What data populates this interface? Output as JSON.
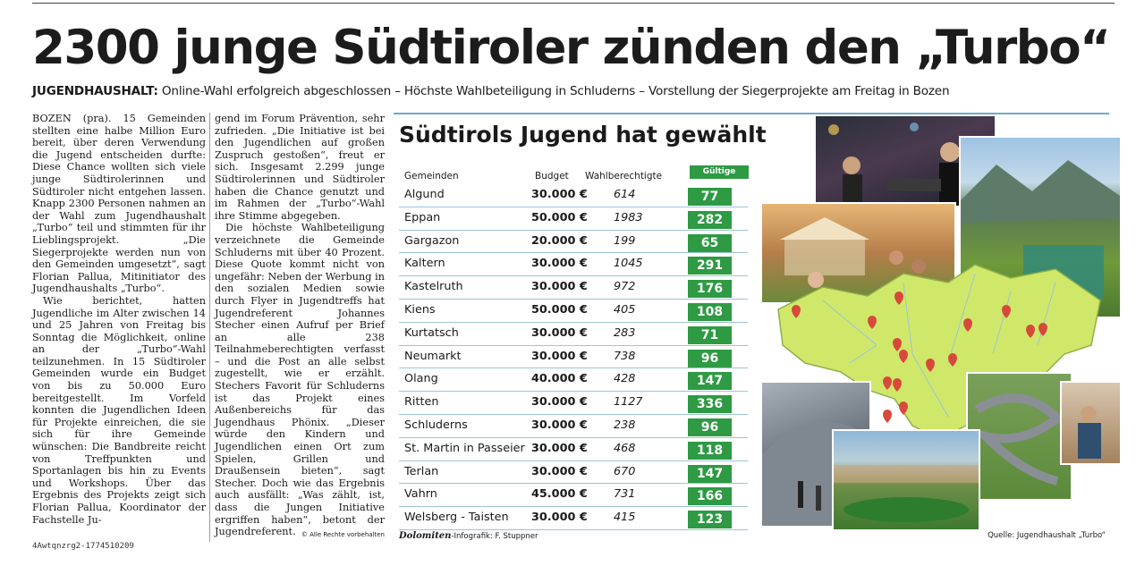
{
  "headline": "2300 junge Südtiroler zünden den „Turbo“",
  "subhead": {
    "kicker": "JUGENDHAUSHALT:",
    "text": " Online-Wahl erfolgreich abgeschlossen – Höchste Wahlbeteiligung in Schluderns – Vorstellung der Siegerprojekte am Freitag in Bozen"
  },
  "article": {
    "col1": [
      "BOZEN (pra). 15 Gemeinden stellten eine halbe Million Euro bereit, über deren Verwendung die Jugend entscheiden durfte: Diese Chance wollten sich viele junge Südtirolerinnen und Südtiroler nicht entgehen lassen. Knapp 2300 Personen nahmen an der Wahl zum Jugendhaushalt „Turbo“ teil und stimmten für ihr Lieblingsprojekt. „Die Siegerprojekte werden nun von den Gemeinden umgesetzt“, sagt Florian Pallua, Mitinitiator des Jugendhaushalts „Turbo“.",
      "Wie berichtet, hatten Jugendliche im Alter zwischen 14 und 25 Jahren von Freitag bis Sonntag die Möglichkeit, online an der „Turbo“-Wahl teilzunehmen. In 15 Südtiroler Gemeinden wurde ein Budget von bis zu 50.000 Euro bereitgestellt. Im Vorfeld konnten die Jugendlichen Ideen für Projekte einreichen, die sie sich für ihre Gemeinde wünschen: Die Bandbreite reicht von Treffpunkten und Sportanlagen bis hin zu Events und Workshops. Über das Ergebnis des Projekts zeigt sich Florian Pallua, Koordinator der Fachstelle Ju-"
    ],
    "col2": [
      "gend im Forum Prävention, sehr zufrieden. „Die Initiative ist bei den Jugendlichen auf großen Zuspruch gestoßen“, freut er sich. Insgesamt 2.299 junge Südtirolerinnen und Südtiroler haben die Chance genutzt und im Rahmen der „Turbo“-Wahl ihre Stimme abgegeben.",
      "Die höchste Wahlbeteiligung verzeichnete die Gemeinde Schluderns mit über 40 Prozent. Diese Quote kommt nicht von ungefähr: Neben der Werbung in den sozialen Medien sowie durch Flyer in Jugendtreffs hat Jugendreferent Johannes Stecher einen Aufruf per Brief an alle 238 Teilnahmeberechtigten verfasst – und die Post an alle selbst zugestellt, wie er erzählt. Stechers Favorit für Schluderns ist das Projekt eines Außenbereichs für das Jugendhaus Phönix. „Dieser würde den Kindern und Jugendlichen einen Ort zum Spielen, Grillen und Draußensein bieten“, sagt Stecher. Doch wie das Ergebnis auch ausfällt: „Was zählt, ist, dass die Jungen Initiative ergriffen haben“, betont der Jugendreferent."
    ],
    "copyright": "© Alle Rechte vorbehalten",
    "code": "4Awtqnzrg2-1774510209"
  },
  "infographic": {
    "title": "Südtirols Jugend hat gewählt",
    "headers": {
      "name": "Gemeinden",
      "budget": "Budget",
      "eligible": "Wahlberechtigte",
      "votes": "Gültige Stimmen"
    },
    "rows": [
      {
        "name": "Algund",
        "budget": "30.000 €",
        "eligible": "614",
        "votes": "77"
      },
      {
        "name": "Eppan",
        "budget": "50.000 €",
        "eligible": "1983",
        "votes": "282"
      },
      {
        "name": "Gargazon",
        "budget": "20.000 €",
        "eligible": "199",
        "votes": "65"
      },
      {
        "name": "Kaltern",
        "budget": "30.000 €",
        "eligible": "1045",
        "votes": "291"
      },
      {
        "name": "Kastelruth",
        "budget": "30.000 €",
        "eligible": "972",
        "votes": "176"
      },
      {
        "name": "Kiens",
        "budget": "50.000 €",
        "eligible": "405",
        "votes": "108"
      },
      {
        "name": "Kurtatsch",
        "budget": "30.000 €",
        "eligible": "283",
        "votes": "71"
      },
      {
        "name": "Neumarkt",
        "budget": "30.000 €",
        "eligible": "738",
        "votes": "96"
      },
      {
        "name": "Olang",
        "budget": "40.000 €",
        "eligible": "428",
        "votes": "147"
      },
      {
        "name": "Ritten",
        "budget": "30.000 €",
        "eligible": "1127",
        "votes": "336"
      },
      {
        "name": "Schluderns",
        "budget": "30.000 €",
        "eligible": "238",
        "votes": "96"
      },
      {
        "name": "St. Martin in Passeier",
        "budget": "30.000 €",
        "eligible": "468",
        "votes": "118"
      },
      {
        "name": "Terlan",
        "budget": "30.000 €",
        "eligible": "670",
        "votes": "147"
      },
      {
        "name": "Vahrn",
        "budget": "45.000 €",
        "eligible": "731",
        "votes": "166"
      },
      {
        "name": "Welsberg - Taisten",
        "budget": "30.000 €",
        "eligible": "415",
        "votes": "123"
      }
    ],
    "credit_brand": "Dolomiten",
    "credit_text": "-Infografik: F. Stuppner",
    "source": "Quelle: Jugendhaushalt „Turbo“",
    "accent_color": "#2e9a43",
    "map_color": "#cfe86a",
    "pin_color": "#d8493c"
  }
}
